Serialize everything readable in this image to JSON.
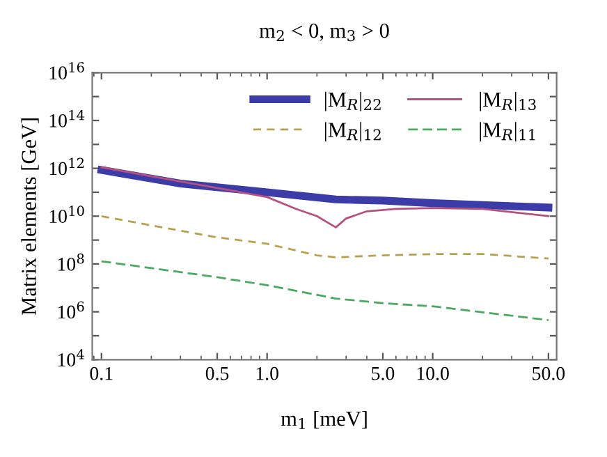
{
  "chart_data": {
    "type": "line",
    "title": "m$_{2}$ < 0, m$_{3}$ > 0",
    "xlabel": "m$_{1}$ [meV]",
    "ylabel": "Matrix elements [GeV]",
    "log": "xy",
    "xlim": [
      0.088,
      56
    ],
    "ylim": [
      10000.0,
      1e+16
    ],
    "xticks": [
      {
        "value": 0.1,
        "label": "0.1"
      },
      {
        "value": 0.5,
        "label": "0.5"
      },
      {
        "value": 1,
        "label": "1.0"
      },
      {
        "value": 5,
        "label": "5.0"
      },
      {
        "value": 10,
        "label": "10.0"
      },
      {
        "value": 50,
        "label": "50.0"
      }
    ],
    "yticks": [
      {
        "value": 10000.0,
        "label": "10$^{4}$"
      },
      {
        "value": 100000.0,
        "label": null
      },
      {
        "value": 1000000.0,
        "label": "10$^{6}$"
      },
      {
        "value": 10000000.0,
        "label": null
      },
      {
        "value": 100000000.0,
        "label": "10$^{8}$"
      },
      {
        "value": 1000000000.0,
        "label": null
      },
      {
        "value": 10000000000.0,
        "label": "10$^{10}$"
      },
      {
        "value": 100000000000.0,
        "label": null
      },
      {
        "value": 1000000000000.0,
        "label": "10$^{12}$"
      },
      {
        "value": 10000000000000.0,
        "label": null
      },
      {
        "value": 100000000000000.0,
        "label": "10$^{14}$"
      },
      {
        "value": 1000000000000000.0,
        "label": null
      },
      {
        "value": 1e+16,
        "label": "10$^{16}$"
      }
    ],
    "grid": false,
    "legend": "top right",
    "marker": "none",
    "series": [
      {
        "name": "|M$_{R}$|$_{22}$",
        "color": "#3c3ca8",
        "line_style": "solid",
        "x": [
          0.1,
          0.3,
          1,
          2.6,
          5,
          10,
          50
        ],
        "values": [
          850000000000.0,
          230000000000.0,
          100000000000.0,
          50000000000.0,
          45000000000.0,
          35000000000.0,
          23000000000.0
        ]
      },
      {
        "name": "|M$_{R}$|$_{13}$",
        "color": "#b5507f",
        "line_style": "solid",
        "x": [
          0.1,
          0.5,
          1,
          1.5,
          2,
          2.6,
          3,
          4,
          6,
          10,
          20,
          50
        ],
        "values": [
          1100000000000.0,
          150000000000.0,
          63000000000.0,
          20000000000.0,
          10000000000.0,
          3400000000.0,
          8000000000.0,
          16000000000.0,
          20000000000.0,
          22000000000.0,
          20000000000.0,
          10000000000.0
        ]
      },
      {
        "name": "|M$_{R}$|$_{12}$",
        "color": "#b8a050",
        "line_style": "dashed",
        "x": [
          0.1,
          0.5,
          1,
          2,
          2.6,
          5,
          10,
          20,
          50
        ],
        "values": [
          10000000000.0,
          1300000000.0,
          700000000.0,
          230000000.0,
          190000000.0,
          230000000.0,
          260000000.0,
          260000000.0,
          170000000.0
        ]
      },
      {
        "name": "|M$_{R}$|$_{11}$",
        "color": "#4aa860",
        "line_style": "dashed",
        "x": [
          0.1,
          0.5,
          1,
          2.6,
          5,
          10,
          50
        ],
        "values": [
          130000000.0,
          28000000.0,
          13000000.0,
          3600000.0,
          2300000.0,
          1700000.0,
          450000.0
        ]
      }
    ]
  }
}
